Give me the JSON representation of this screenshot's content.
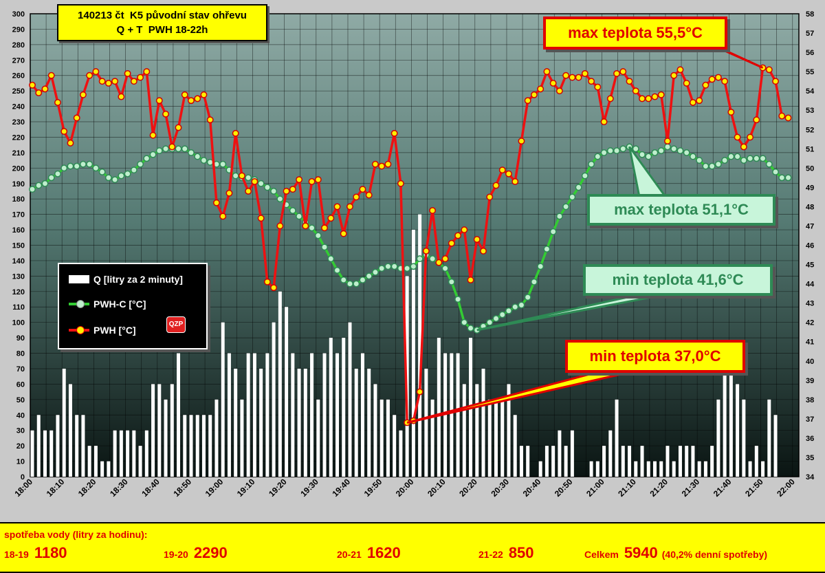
{
  "title": {
    "line1": "140213 čt  K5 původní stav ohřevu",
    "line2": "Q + T  PWH 18-22h"
  },
  "colors": {
    "bars": "#ffffff",
    "pwhc": "#33cc33",
    "pwhc_marker": "#bfeecd",
    "pwh": "#ee1111",
    "pwh_marker": "#ffee00",
    "grid": "#000000",
    "label_left": "#000000",
    "label_right": "#000000"
  },
  "legend": {
    "q_label": "Q [litry za 2 minuty]",
    "pwhc_label": "PWH-C [°C]",
    "pwh_label": "PWH  [°C]",
    "logo_text": "QZP"
  },
  "annotations": {
    "max_pwh": "max teplota 55,5°C",
    "max_pwhc": "max teplota 51,1°C",
    "min_pwhc": "min teplota 41,6°C",
    "min_pwh": "min teplota 37,0°C"
  },
  "chart_data": {
    "type": "bar+line",
    "x_tick_labels": [
      "18:00",
      "18:10",
      "18:20",
      "18:30",
      "18:40",
      "18:50",
      "19:00",
      "19:10",
      "19:20",
      "19:30",
      "19:40",
      "19:50",
      "20:00",
      "20:10",
      "20:20",
      "20:30",
      "20:40",
      "20:50",
      "21:00",
      "21:10",
      "21:20",
      "21:30",
      "21:40",
      "21:50",
      "22:00"
    ],
    "x_range_minutes": [
      0,
      242
    ],
    "left_axis": {
      "label": "Q [litry za 2 minuty]",
      "min": 0,
      "max": 300,
      "step": 10
    },
    "right_axis": {
      "label": "°C",
      "min": 34,
      "max": 58,
      "step": 1
    },
    "series": [
      {
        "name": "Q [litry za 2 minuty]",
        "type": "bar",
        "axis": "left",
        "x_minutes_step": 2,
        "x_start": 0,
        "values": [
          30,
          40,
          30,
          30,
          40,
          70,
          60,
          40,
          40,
          20,
          20,
          10,
          10,
          30,
          30,
          30,
          30,
          20,
          30,
          60,
          60,
          50,
          60,
          80,
          40,
          40,
          40,
          40,
          40,
          50,
          100,
          80,
          70,
          50,
          80,
          80,
          70,
          80,
          100,
          120,
          110,
          80,
          70,
          70,
          80,
          50,
          80,
          90,
          80,
          90,
          100,
          70,
          80,
          70,
          60,
          50,
          50,
          40,
          30,
          130,
          160,
          170,
          70,
          50,
          90,
          80,
          80,
          80,
          60,
          90,
          60,
          70,
          50,
          50,
          50,
          60,
          40,
          20,
          20,
          0,
          10,
          20,
          20,
          30,
          20,
          30,
          0,
          0,
          10,
          10,
          20,
          30,
          50,
          20,
          20,
          10,
          20,
          10,
          10,
          10,
          20,
          10,
          20,
          20,
          20,
          10,
          10,
          20,
          50,
          70,
          70,
          60,
          50,
          10,
          20,
          10,
          50,
          40
        ]
      },
      {
        "name": "PWH-C [°C]",
        "type": "line",
        "axis": "right",
        "x_minutes_step": 2,
        "x_start": 0,
        "values": [
          48.9,
          49.1,
          49.2,
          49.5,
          49.7,
          50.0,
          50.1,
          50.1,
          50.2,
          50.2,
          50.0,
          49.8,
          49.5,
          49.4,
          49.6,
          49.7,
          49.9,
          50.2,
          50.5,
          50.7,
          50.9,
          51.0,
          51.0,
          51.0,
          51.0,
          50.8,
          50.6,
          50.4,
          50.3,
          50.2,
          50.2,
          49.9,
          49.6,
          49.5,
          49.5,
          49.4,
          49.2,
          49.0,
          48.8,
          48.4,
          48.1,
          47.8,
          47.5,
          47.2,
          46.9,
          46.5,
          45.9,
          45.3,
          44.7,
          44.2,
          44.0,
          44.0,
          44.2,
          44.4,
          44.6,
          44.8,
          44.9,
          44.9,
          44.8,
          44.8,
          44.9,
          45.3,
          45.5,
          45.3,
          45.1,
          44.8,
          44.1,
          43.2,
          42.0,
          41.7,
          41.6,
          41.8,
          42.0,
          42.2,
          42.4,
          42.6,
          42.8,
          42.9,
          43.3,
          44.1,
          44.9,
          45.8,
          46.7,
          47.5,
          48.0,
          48.5,
          49.0,
          49.6,
          50.2,
          50.6,
          50.8,
          50.9,
          50.9,
          51.0,
          51.1,
          51.0,
          50.7,
          50.6,
          50.8,
          50.9,
          51.1,
          51.0,
          50.9,
          50.8,
          50.6,
          50.4,
          50.1,
          50.1,
          50.2,
          50.4,
          50.6,
          50.6,
          50.4,
          50.5,
          50.5,
          50.5,
          50.2,
          49.8,
          49.5,
          49.5
        ]
      },
      {
        "name": "PWH  [°C]",
        "type": "line",
        "axis": "right",
        "x_minutes_step": 2,
        "x_start": 0,
        "values": [
          54.3,
          53.9,
          54.1,
          54.8,
          53.4,
          51.9,
          51.3,
          52.6,
          53.8,
          54.8,
          55.0,
          54.5,
          54.4,
          54.5,
          53.7,
          54.9,
          54.5,
          54.7,
          55.0,
          51.7,
          53.5,
          52.8,
          51.1,
          52.1,
          53.8,
          53.5,
          53.6,
          53.8,
          52.5,
          48.2,
          47.5,
          48.7,
          51.8,
          49.6,
          48.8,
          49.3,
          47.4,
          44.1,
          43.8,
          47.0,
          48.8,
          48.9,
          49.4,
          47.0,
          49.3,
          49.4,
          46.9,
          47.4,
          48.0,
          46.6,
          48.0,
          48.5,
          48.9,
          48.6,
          50.2,
          50.1,
          50.2,
          51.8,
          49.2,
          36.8,
          36.9,
          38.4,
          45.7,
          47.8,
          45.1,
          45.3,
          46.1,
          46.5,
          46.8,
          44.2,
          46.3,
          45.7,
          48.5,
          49.1,
          49.9,
          49.7,
          49.3,
          51.4,
          53.5,
          53.8,
          54.1,
          55.0,
          54.4,
          54.0,
          54.8,
          54.7,
          54.7,
          54.9,
          54.5,
          54.2,
          52.4,
          53.6,
          54.9,
          55.0,
          54.5,
          54.0,
          53.6,
          53.6,
          53.7,
          53.8,
          51.4,
          54.8,
          55.1,
          54.4,
          53.4,
          53.5,
          54.3,
          54.6,
          54.7,
          54.5,
          52.9,
          51.6,
          51.1,
          51.6,
          52.5,
          55.2,
          55.1,
          54.5,
          52.7,
          52.6
        ]
      }
    ],
    "grid": true
  },
  "summary": {
    "heading": "spotřeba vody  (litry za hodinu):",
    "items": [
      {
        "label": "18-19",
        "value": "1180"
      },
      {
        "label": "19-20",
        "value": "2290"
      },
      {
        "label": "20-21",
        "value": "1620"
      },
      {
        "label": "21-22",
        "value": "850"
      }
    ],
    "total_label": "Celkem",
    "total_value": "5940",
    "total_note": "(40,2% denní spotřeby)"
  }
}
